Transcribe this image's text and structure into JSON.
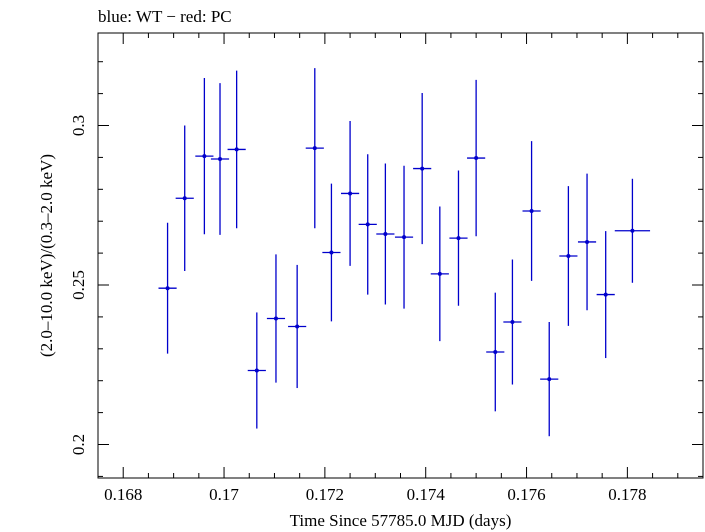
{
  "chart_data": {
    "type": "scatter",
    "title": "blue: WT − red: PC",
    "xlabel": "Time Since 57785.0 MJD (days)",
    "ylabel": "(2.0–10.0 keV)/(0.3–2.0 keV)",
    "xlim": [
      0.1675,
      0.1795
    ],
    "ylim": [
      0.1895,
      0.329
    ],
    "xticks": [
      0.168,
      0.17,
      0.172,
      0.174,
      0.176,
      0.178
    ],
    "xtick_labels": [
      "0.168",
      "0.17",
      "0.172",
      "0.174",
      "0.176",
      "0.178"
    ],
    "xminor_step": 0.0005,
    "yticks": [
      0.2,
      0.25,
      0.3
    ],
    "ytick_labels": [
      "0.2",
      "0.25",
      "0.3"
    ],
    "yminor_step": 0.01,
    "grid": false,
    "series_color": "#0000cc",
    "series": [
      {
        "points": [
          {
            "x": 0.16888,
            "xerr": 0.00018,
            "y": 0.249,
            "yerr": 0.0205
          },
          {
            "x": 0.16922,
            "xerr": 0.00018,
            "y": 0.2772,
            "yerr": 0.0228
          },
          {
            "x": 0.16961,
            "xerr": 0.00018,
            "y": 0.2904,
            "yerr": 0.0245
          },
          {
            "x": 0.16992,
            "xerr": 0.00018,
            "y": 0.2895,
            "yerr": 0.0238
          },
          {
            "x": 0.17025,
            "xerr": 0.00018,
            "y": 0.2925,
            "yerr": 0.0247
          },
          {
            "x": 0.17065,
            "xerr": 0.00018,
            "y": 0.2232,
            "yerr": 0.0182
          },
          {
            "x": 0.17103,
            "xerr": 0.00018,
            "y": 0.2395,
            "yerr": 0.0201
          },
          {
            "x": 0.17145,
            "xerr": 0.00018,
            "y": 0.237,
            "yerr": 0.0193
          },
          {
            "x": 0.1718,
            "xerr": 0.00018,
            "y": 0.2929,
            "yerr": 0.0251
          },
          {
            "x": 0.17213,
            "xerr": 0.00018,
            "y": 0.2602,
            "yerr": 0.0216
          },
          {
            "x": 0.1725,
            "xerr": 0.00018,
            "y": 0.2787,
            "yerr": 0.0227
          },
          {
            "x": 0.17285,
            "xerr": 0.00018,
            "y": 0.269,
            "yerr": 0.022
          },
          {
            "x": 0.1732,
            "xerr": 0.00018,
            "y": 0.266,
            "yerr": 0.0221
          },
          {
            "x": 0.17357,
            "xerr": 0.00018,
            "y": 0.265,
            "yerr": 0.0224
          },
          {
            "x": 0.17393,
            "xerr": 0.00018,
            "y": 0.2865,
            "yerr": 0.0237
          },
          {
            "x": 0.17428,
            "xerr": 0.00018,
            "y": 0.2535,
            "yerr": 0.0211
          },
          {
            "x": 0.17465,
            "xerr": 0.00018,
            "y": 0.2647,
            "yerr": 0.0212
          },
          {
            "x": 0.175,
            "xerr": 0.00018,
            "y": 0.2898,
            "yerr": 0.0245
          },
          {
            "x": 0.17538,
            "xerr": 0.00018,
            "y": 0.229,
            "yerr": 0.0186
          },
          {
            "x": 0.17572,
            "xerr": 0.00018,
            "y": 0.2384,
            "yerr": 0.0196
          },
          {
            "x": 0.1761,
            "xerr": 0.00018,
            "y": 0.2732,
            "yerr": 0.0219
          },
          {
            "x": 0.17645,
            "xerr": 0.00018,
            "y": 0.2205,
            "yerr": 0.0179
          },
          {
            "x": 0.17683,
            "xerr": 0.00018,
            "y": 0.2591,
            "yerr": 0.0219
          },
          {
            "x": 0.1772,
            "xerr": 0.00018,
            "y": 0.2635,
            "yerr": 0.0214
          },
          {
            "x": 0.17757,
            "xerr": 0.00018,
            "y": 0.247,
            "yerr": 0.0199
          },
          {
            "x": 0.1781,
            "xerr": 0.00035,
            "y": 0.267,
            "yerr": 0.0163
          }
        ]
      }
    ]
  }
}
